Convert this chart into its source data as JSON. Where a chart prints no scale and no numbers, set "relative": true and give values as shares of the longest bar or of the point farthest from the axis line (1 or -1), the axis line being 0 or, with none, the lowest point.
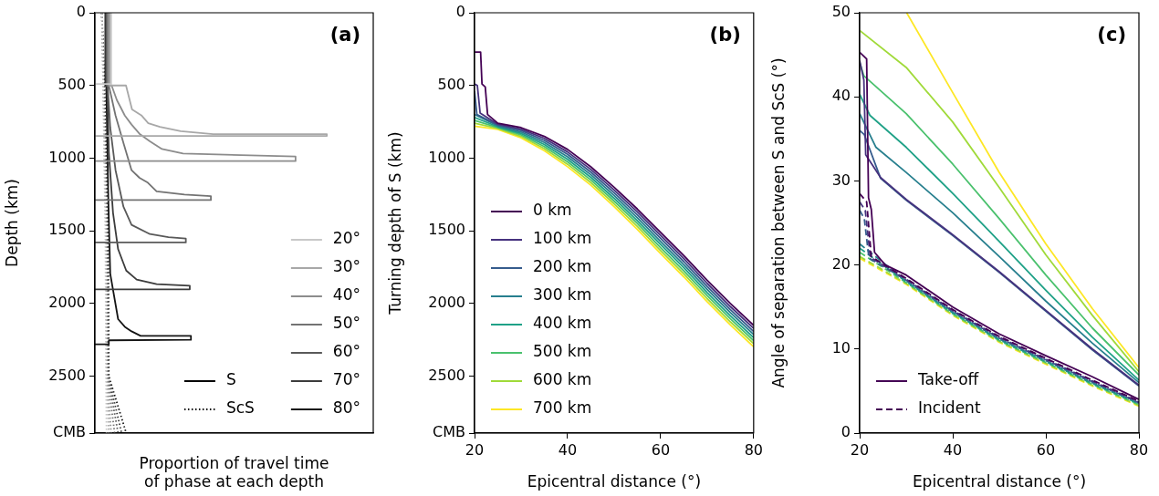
{
  "chart_data": [
    {
      "type": "line",
      "xlabel": "Proportion of travel time\nof phase at each depth",
      "ylabel": "Depth (km)",
      "relative": true,
      "orientation": "horizontal",
      "ylim": [
        2891,
        0
      ],
      "yticks": [
        0,
        500,
        1000,
        1500,
        2000,
        2500,
        {
          "value": 2891,
          "label": "CMB"
        }
      ],
      "grid": false,
      "marker": "none",
      "legend": "lower right",
      "annotations": [
        "(a)"
      ],
      "series": [
        {
          "name": "S",
          "color": "#000000",
          "line_style": "solid",
          "x": [
            null
          ],
          "values": [
            null
          ]
        },
        {
          "name": "ScS",
          "color": "#000000",
          "line_style": "dotted",
          "x": [
            null
          ],
          "values": [
            null
          ]
        },
        {
          "name": "20°",
          "color": "#c8c8c8",
          "line_style": "solid",
          "values": [
            0.07,
            0.07,
            0
          ],
          "x": [
            0,
            490,
            490
          ]
        },
        {
          "name": "30°",
          "color": "#a8a8a8",
          "line_style": "solid",
          "values": [
            0.065,
            0.065,
            0.134,
            0.16,
            0.2,
            0.23,
            0.28,
            0.37,
            0.51,
            1.0,
            1.0,
            0
          ],
          "x": [
            0,
            500,
            500,
            665,
            705,
            760,
            785,
            815,
            835,
            835,
            847,
            847
          ]
        },
        {
          "name": "40°",
          "color": "#8c8c8c",
          "line_style": "solid",
          "values": [
            0.06,
            0.06,
            0.072,
            0.095,
            0.112,
            0.129,
            0.158,
            0.192,
            0.237,
            0.289,
            0.38,
            0.865,
            0.865,
            0
          ],
          "x": [
            0,
            500,
            500,
            602,
            654,
            707,
            769,
            832,
            884,
            937,
            968,
            989,
            1020,
            1020
          ]
        },
        {
          "name": "50°",
          "color": "#737373",
          "line_style": "solid",
          "values": [
            0.055,
            0.055,
            0.06,
            0.089,
            0.123,
            0.158,
            0.192,
            0.226,
            0.266,
            0.386,
            0.5,
            0.5,
            0
          ],
          "x": [
            0,
            500,
            500,
            707,
            895,
            1083,
            1135,
            1166,
            1229,
            1250,
            1261,
            1288,
            1288
          ]
        },
        {
          "name": "60°",
          "color": "#595959",
          "line_style": "solid",
          "values": [
            0.05,
            0.05,
            0.055,
            0.066,
            0.089,
            0.123,
            0.158,
            0.237,
            0.317,
            0.392,
            0.392,
            0
          ],
          "x": [
            0,
            500,
            500,
            790,
            1083,
            1334,
            1459,
            1522,
            1543,
            1553,
            1580,
            1580
          ]
        },
        {
          "name": "70°",
          "color": "#3c3c3c",
          "line_style": "solid",
          "values": [
            0.048,
            0.048,
            0.053,
            0.06,
            0.078,
            0.1,
            0.135,
            0.18,
            0.266,
            0.409,
            0.409,
            0
          ],
          "x": [
            0,
            500,
            500,
            957,
            1375,
            1626,
            1773,
            1835,
            1867,
            1877,
            1902,
            1902
          ]
        },
        {
          "name": "80°",
          "color": "#141414",
          "line_style": "solid",
          "values": [
            0.045,
            0.045,
            0.049,
            0.058,
            0.066,
            0.1,
            0.129,
            0.158,
            0.197,
            0.414,
            0.414,
            0.06,
            0.06,
            0
          ],
          "x": [
            0,
            500,
            500,
            1300,
            1794,
            2107,
            2160,
            2191,
            2222,
            2222,
            2249,
            2253,
            2280,
            2280
          ]
        },
        {
          "color": "#c8c8c8",
          "line_style": "dotted",
          "values": [
            0.03,
            0.035,
            0.045,
            0.048,
            0.05
          ],
          "x": [
            0,
            500,
            1500,
            2500,
            2891
          ]
        },
        {
          "color": "#a8a8a8",
          "line_style": "dotted",
          "values": [
            0.03,
            0.036,
            0.047,
            0.05,
            0.06
          ],
          "x": [
            0,
            500,
            1500,
            2500,
            2891
          ]
        },
        {
          "color": "#8c8c8c",
          "line_style": "dotted",
          "values": [
            0.03,
            0.037,
            0.049,
            0.052,
            0.07
          ],
          "x": [
            0,
            500,
            1500,
            2500,
            2891
          ]
        },
        {
          "color": "#737373",
          "line_style": "dotted",
          "values": [
            0.03,
            0.038,
            0.051,
            0.054,
            0.085
          ],
          "x": [
            0,
            500,
            1500,
            2500,
            2891
          ]
        },
        {
          "color": "#595959",
          "line_style": "dotted",
          "values": [
            0.03,
            0.039,
            0.053,
            0.056,
            0.1
          ],
          "x": [
            0,
            500,
            1500,
            2500,
            2891
          ]
        },
        {
          "color": "#3c3c3c",
          "line_style": "dotted",
          "values": [
            0.03,
            0.04,
            0.055,
            0.058,
            0.115
          ],
          "x": [
            0,
            500,
            1500,
            2500,
            2891
          ]
        },
        {
          "color": "#141414",
          "line_style": "dotted",
          "values": [
            0.03,
            0.041,
            0.057,
            0.06,
            0.135
          ],
          "x": [
            0,
            500,
            1500,
            2500,
            2891
          ]
        }
      ]
    },
    {
      "type": "line",
      "xlabel": "Epicentral distance (°)",
      "ylabel": "Turning depth of S (km)",
      "xlim": [
        20,
        80
      ],
      "xticks": [
        20,
        40,
        60,
        80
      ],
      "ylim": [
        2891,
        0
      ],
      "yticks": [
        0,
        500,
        1000,
        1500,
        2000,
        2500,
        {
          "value": 2891,
          "label": "CMB"
        }
      ],
      "grid": false,
      "marker": "none",
      "legend": "lower left",
      "annotations": [
        "(b)"
      ],
      "series": [
        {
          "name": "0 km",
          "color": "#440154",
          "line_style": "solid",
          "x": [
            20,
            21.3,
            21.6,
            22.3,
            22.8,
            25,
            30,
            35,
            40,
            45,
            50,
            55,
            60,
            65,
            70,
            75,
            80
          ],
          "values": [
            270,
            270,
            490,
            510,
            700,
            760,
            790,
            850,
            940,
            1060,
            1200,
            1350,
            1510,
            1670,
            1840,
            2000,
            2150
          ]
        },
        {
          "name": "100 km",
          "color": "#46327e",
          "line_style": "solid",
          "x": [
            20,
            20.6,
            21.2,
            25,
            30,
            35,
            40,
            45,
            50,
            55,
            60,
            65,
            70,
            75,
            80
          ],
          "values": [
            490,
            500,
            690,
            766,
            800,
            864,
            957,
            1078,
            1219,
            1370,
            1531,
            1691,
            1861,
            2021,
            2171
          ]
        },
        {
          "name": "200 km",
          "color": "#365c8d",
          "line_style": "solid",
          "x": [
            20,
            20.5,
            25,
            30,
            35,
            40,
            45,
            50,
            55,
            60,
            65,
            70,
            75,
            80
          ],
          "values": [
            540,
            700,
            772,
            810,
            878,
            974,
            1096,
            1238,
            1390,
            1552,
            1712,
            1882,
            2042,
            2192
          ]
        },
        {
          "name": "300 km",
          "color": "#277f8e",
          "line_style": "solid",
          "x": [
            20,
            25,
            30,
            35,
            40,
            45,
            50,
            55,
            60,
            65,
            70,
            75,
            80
          ],
          "values": [
            700,
            778,
            820,
            892,
            991,
            1114,
            1257,
            1410,
            1573,
            1733,
            1903,
            2063,
            2213
          ]
        },
        {
          "name": "400 km",
          "color": "#1fa187",
          "line_style": "solid",
          "x": [
            20,
            25,
            30,
            35,
            40,
            45,
            50,
            55,
            60,
            65,
            70,
            75,
            80
          ],
          "values": [
            720,
            784,
            830,
            906,
            1008,
            1132,
            1276,
            1430,
            1594,
            1754,
            1924,
            2084,
            2234
          ]
        },
        {
          "name": "500 km",
          "color": "#4ac16d",
          "line_style": "solid",
          "x": [
            20,
            25,
            30,
            35,
            40,
            45,
            50,
            55,
            60,
            65,
            70,
            75,
            80
          ],
          "values": [
            740,
            790,
            840,
            920,
            1025,
            1150,
            1295,
            1450,
            1615,
            1775,
            1945,
            2105,
            2255
          ]
        },
        {
          "name": "600 km",
          "color": "#a0da39",
          "line_style": "solid",
          "x": [
            20,
            25,
            30,
            35,
            40,
            45,
            50,
            55,
            60,
            65,
            70,
            75,
            80
          ],
          "values": [
            760,
            796,
            850,
            934,
            1042,
            1168,
            1314,
            1470,
            1636,
            1796,
            1966,
            2126,
            2276
          ]
        },
        {
          "name": "700 km",
          "color": "#fde725",
          "line_style": "solid",
          "x": [
            20,
            25,
            30,
            35,
            40,
            45,
            50,
            55,
            60,
            65,
            70,
            75,
            80
          ],
          "values": [
            780,
            802,
            860,
            948,
            1059,
            1186,
            1333,
            1490,
            1657,
            1817,
            1987,
            2147,
            2297
          ]
        }
      ]
    },
    {
      "type": "line",
      "xlabel": "Epicentral distance (°)",
      "ylabel": "Angle of separation between S and ScS (°)",
      "xlim": [
        20,
        80
      ],
      "xticks": [
        20,
        40,
        60,
        80
      ],
      "ylim": [
        0,
        50
      ],
      "yticks": [
        0,
        10,
        20,
        30,
        40,
        50
      ],
      "grid": false,
      "marker": "none",
      "legend": "lower left",
      "annotations": [
        "(c)"
      ],
      "series": [
        {
          "name": "Take-off",
          "color": "#440154",
          "line_style": "solid",
          "x": [
            20,
            21.5,
            21.9,
            22.5,
            23.2,
            25.5,
            30,
            40,
            50,
            60,
            70,
            80
          ],
          "values": [
            45.3,
            44.5,
            28,
            26.6,
            21.5,
            20,
            18.8,
            15.0,
            11.8,
            9.2,
            6.7,
            4.0
          ]
        },
        {
          "name": "Incident",
          "color": "#440154",
          "line_style": "dashed",
          "x": [
            20,
            21.5,
            22.5,
            30,
            40,
            50,
            60,
            70,
            80
          ],
          "values": [
            28.5,
            27.5,
            21.0,
            18.4,
            14.7,
            11.5,
            8.9,
            6.3,
            3.8
          ]
        },
        {
          "color": "#46327e",
          "line_style": "solid",
          "x": [
            20,
            20.9,
            21.3,
            24.5,
            30,
            40,
            50,
            60,
            70,
            80
          ],
          "values": [
            44.3,
            42,
            33.1,
            30.4,
            27.8,
            23.6,
            19.2,
            14.6,
            10.0,
            5.7
          ]
        },
        {
          "color": "#365c8d",
          "line_style": "solid",
          "x": [
            20,
            21,
            24.5,
            30,
            40,
            50,
            60,
            70,
            80
          ],
          "values": [
            36,
            35.5,
            30.3,
            27.7,
            23.5,
            19.1,
            14.5,
            9.9,
            5.6
          ]
        },
        {
          "color": "#277f8e",
          "line_style": "solid",
          "x": [
            20,
            23.5,
            30,
            40,
            50,
            60,
            70,
            80
          ],
          "values": [
            38,
            34,
            31.0,
            26.2,
            21.0,
            15.7,
            10.7,
            6.0
          ]
        },
        {
          "color": "#1fa187",
          "line_style": "solid",
          "x": [
            20,
            22.2,
            30,
            40,
            50,
            60,
            70,
            80
          ],
          "values": [
            40.3,
            37.8,
            34.0,
            28.5,
            22.8,
            17.0,
            11.4,
            6.3
          ]
        },
        {
          "color": "#4ac16d",
          "line_style": "solid",
          "x": [
            20,
            20.9,
            30,
            40,
            50,
            60,
            70,
            80
          ],
          "values": [
            44.1,
            42.5,
            38.0,
            32.0,
            25.5,
            18.8,
            12.5,
            6.9
          ]
        },
        {
          "color": "#a0da39",
          "line_style": "solid",
          "x": [
            20,
            30,
            40,
            50,
            60,
            70,
            80
          ],
          "values": [
            47.9,
            43.5,
            37.0,
            29.2,
            21.2,
            14.0,
            7.3
          ]
        },
        {
          "color": "#fde725",
          "line_style": "solid",
          "x": [
            30.1,
            40,
            50,
            60,
            70,
            80
          ],
          "values": [
            50,
            40.5,
            31.0,
            22.5,
            14.8,
            7.8
          ]
        },
        {
          "color": "#46327e",
          "line_style": "dashed",
          "x": [
            20,
            21.2,
            22.3,
            30,
            40,
            50,
            60,
            70,
            80
          ],
          "values": [
            27.5,
            26.5,
            20.9,
            18.3,
            14.6,
            11.4,
            8.8,
            6.2,
            3.7
          ]
        },
        {
          "color": "#365c8d",
          "line_style": "dashed",
          "x": [
            20,
            21,
            22,
            30,
            40,
            50,
            60,
            70,
            80
          ],
          "values": [
            26.5,
            25.5,
            20.8,
            18.2,
            14.5,
            11.3,
            8.7,
            6.1,
            3.6
          ]
        },
        {
          "color": "#277f8e",
          "line_style": "dashed",
          "x": [
            20,
            30,
            40,
            50,
            60,
            70,
            80
          ],
          "values": [
            22.5,
            18.1,
            14.4,
            11.2,
            8.6,
            6.0,
            3.6
          ]
        },
        {
          "color": "#1fa187",
          "line_style": "dashed",
          "x": [
            20,
            30,
            40,
            50,
            60,
            70,
            80
          ],
          "values": [
            22.0,
            18.0,
            14.3,
            11.1,
            8.5,
            5.9,
            3.5
          ]
        },
        {
          "color": "#4ac16d",
          "line_style": "dashed",
          "x": [
            20,
            30,
            40,
            50,
            60,
            70,
            80
          ],
          "values": [
            21.5,
            17.9,
            14.2,
            11.0,
            8.4,
            5.8,
            3.4
          ]
        },
        {
          "color": "#a0da39",
          "line_style": "dashed",
          "x": [
            20,
            30,
            40,
            50,
            60,
            70,
            80
          ],
          "values": [
            21.0,
            17.8,
            14.1,
            10.9,
            8.3,
            5.7,
            3.3
          ]
        },
        {
          "color": "#fde725",
          "line_style": "dashed",
          "x": [
            20,
            30,
            40,
            50,
            60,
            70,
            80
          ],
          "values": [
            20.8,
            17.7,
            14.0,
            10.8,
            8.2,
            5.6,
            3.2
          ]
        }
      ]
    }
  ]
}
